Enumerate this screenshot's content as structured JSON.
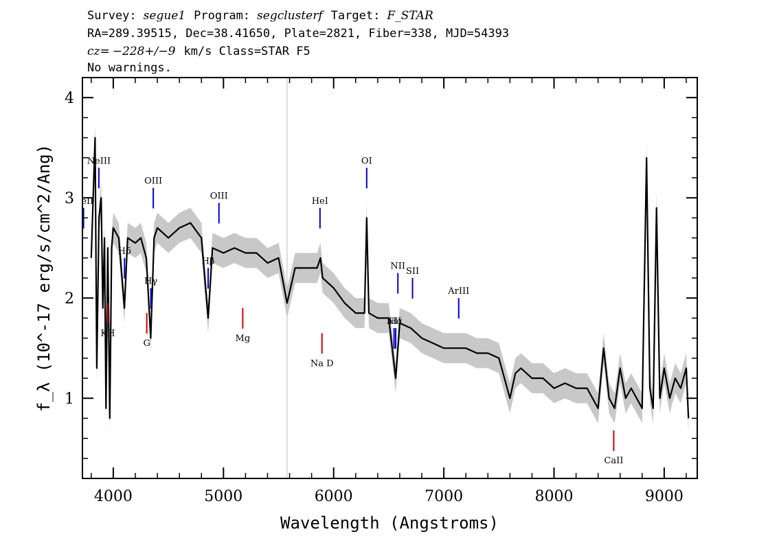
{
  "header": {
    "line1": {
      "survey_label": "Survey:",
      "survey_value": "segue1",
      "program_label": "Program:",
      "program_value": "segclusterf",
      "target_label": "Target:",
      "target_value": "F_STAR"
    },
    "line2": "RA=289.39515, Dec=38.41650, Plate=2821, Fiber=338, MJD=54393",
    "line3": {
      "cz_label": "cz=",
      "cz_value": "−228+/−9",
      "rest": "km/s Class=STAR F5"
    },
    "line4": "No warnings."
  },
  "chart_data": {
    "type": "line",
    "xlabel": "Wavelength (Angstroms)",
    "ylabel": "f_λ (10^-17 erg/s/cm^2/Ang)",
    "xlim": [
      3720,
      9300
    ],
    "ylim": [
      0.2,
      4.2
    ],
    "xticks": [
      4000,
      5000,
      6000,
      7000,
      8000,
      9000
    ],
    "yticks": [
      1,
      2,
      3,
      4
    ],
    "sky_line_x": 5577,
    "series": [
      {
        "role": "flux",
        "color": "#000000",
        "points": [
          [
            3800,
            2.4
          ],
          [
            3835,
            3.6
          ],
          [
            3850,
            1.3
          ],
          [
            3870,
            2.8
          ],
          [
            3890,
            3.0
          ],
          [
            3905,
            1.9
          ],
          [
            3920,
            2.6
          ],
          [
            3934,
            0.9
          ],
          [
            3950,
            2.5
          ],
          [
            3968,
            0.8
          ],
          [
            3985,
            2.5
          ],
          [
            4000,
            2.7
          ],
          [
            4050,
            2.6
          ],
          [
            4101,
            1.9
          ],
          [
            4130,
            2.6
          ],
          [
            4200,
            2.55
          ],
          [
            4250,
            2.6
          ],
          [
            4300,
            2.4
          ],
          [
            4340,
            1.6
          ],
          [
            4370,
            2.6
          ],
          [
            4400,
            2.7
          ],
          [
            4500,
            2.6
          ],
          [
            4600,
            2.7
          ],
          [
            4700,
            2.75
          ],
          [
            4800,
            2.6
          ],
          [
            4861,
            1.8
          ],
          [
            4900,
            2.5
          ],
          [
            5000,
            2.45
          ],
          [
            5100,
            2.5
          ],
          [
            5200,
            2.45
          ],
          [
            5300,
            2.45
          ],
          [
            5400,
            2.35
          ],
          [
            5500,
            2.4
          ],
          [
            5577,
            1.95
          ],
          [
            5650,
            2.3
          ],
          [
            5750,
            2.3
          ],
          [
            5850,
            2.3
          ],
          [
            5880,
            2.4
          ],
          [
            5900,
            2.2
          ],
          [
            6000,
            2.1
          ],
          [
            6100,
            1.95
          ],
          [
            6200,
            1.85
          ],
          [
            6280,
            1.85
          ],
          [
            6300,
            2.8
          ],
          [
            6320,
            1.85
          ],
          [
            6400,
            1.8
          ],
          [
            6500,
            1.8
          ],
          [
            6563,
            1.2
          ],
          [
            6600,
            1.75
          ],
          [
            6700,
            1.7
          ],
          [
            6800,
            1.6
          ],
          [
            6900,
            1.55
          ],
          [
            7000,
            1.5
          ],
          [
            7100,
            1.5
          ],
          [
            7200,
            1.5
          ],
          [
            7300,
            1.45
          ],
          [
            7400,
            1.45
          ],
          [
            7500,
            1.4
          ],
          [
            7600,
            1.0
          ],
          [
            7650,
            1.25
          ],
          [
            7700,
            1.3
          ],
          [
            7800,
            1.2
          ],
          [
            7900,
            1.2
          ],
          [
            8000,
            1.1
          ],
          [
            8100,
            1.15
          ],
          [
            8200,
            1.1
          ],
          [
            8300,
            1.1
          ],
          [
            8400,
            0.9
          ],
          [
            8450,
            1.5
          ],
          [
            8500,
            1.0
          ],
          [
            8550,
            0.9
          ],
          [
            8600,
            1.3
          ],
          [
            8650,
            1.0
          ],
          [
            8700,
            1.1
          ],
          [
            8800,
            0.9
          ],
          [
            8840,
            3.4
          ],
          [
            8870,
            1.1
          ],
          [
            8900,
            0.9
          ],
          [
            8930,
            2.9
          ],
          [
            8960,
            1.0
          ],
          [
            9000,
            1.3
          ],
          [
            9050,
            1.0
          ],
          [
            9100,
            1.2
          ],
          [
            9150,
            1.1
          ],
          [
            9200,
            1.3
          ],
          [
            9220,
            0.8
          ]
        ]
      }
    ],
    "emission_lines": [
      {
        "label": "HeII",
        "x": 3730,
        "color": "blue"
      },
      {
        "label": "NeIII",
        "x": 3869,
        "color": "blue"
      },
      {
        "label": "Hδ",
        "x": 4102,
        "color": "blue"
      },
      {
        "label": "Hγ",
        "x": 4341,
        "color": "blue"
      },
      {
        "label": "OIII",
        "x": 4363,
        "color": "blue"
      },
      {
        "label": "Hβ",
        "x": 4861,
        "color": "blue"
      },
      {
        "label": "OIII",
        "x": 4959,
        "color": "blue"
      },
      {
        "label": "HeI",
        "x": 5876,
        "color": "blue"
      },
      {
        "label": "OI",
        "x": 6300,
        "color": "blue"
      },
      {
        "label": "NII",
        "x": 6548,
        "color": "blue"
      },
      {
        "label": "Hα",
        "x": 6563,
        "color": "blue"
      },
      {
        "label": "NII",
        "x": 6583,
        "color": "blue"
      },
      {
        "label": "SII",
        "x": 6716,
        "color": "blue"
      },
      {
        "label": "ArIII",
        "x": 7135,
        "color": "blue"
      }
    ],
    "absorption_lines": [
      {
        "label": "KH",
        "x": 3950,
        "color": "red"
      },
      {
        "label": "G",
        "x": 4304,
        "color": "red"
      },
      {
        "label": "Mg",
        "x": 5175,
        "color": "red"
      },
      {
        "label": "Na D",
        "x": 5894,
        "color": "red"
      },
      {
        "label": "CaII",
        "x": 8542,
        "color": "red"
      }
    ]
  }
}
